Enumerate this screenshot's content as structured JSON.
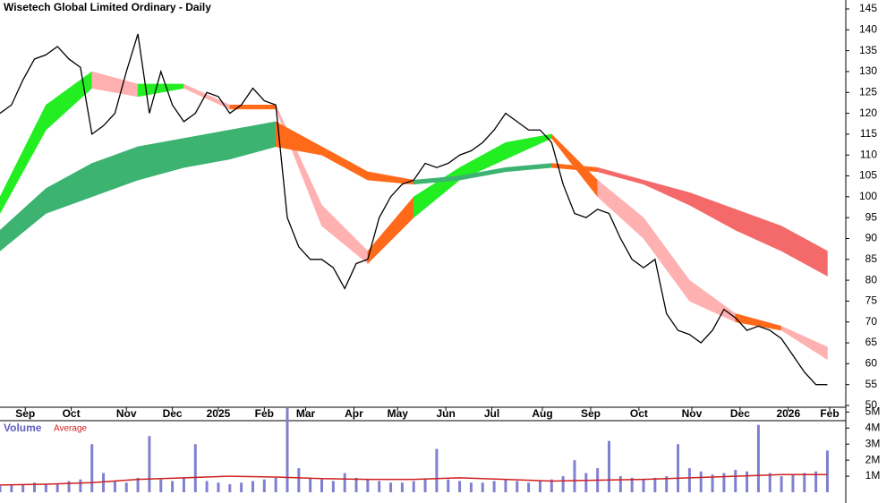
{
  "chart_data": [
    {
      "type": "line",
      "title": "Wisetech Global Limited Ordinary - Daily",
      "xlim": [
        0,
        368
      ],
      "xticks": [
        {
          "value": 11,
          "label": "Sep"
        },
        {
          "value": 31,
          "label": "Oct"
        },
        {
          "value": 55,
          "label": "Nov"
        },
        {
          "value": 75,
          "label": "Dec"
        },
        {
          "value": 95,
          "label": "2025"
        },
        {
          "value": 115,
          "label": "Feb"
        },
        {
          "value": 133,
          "label": "Mar"
        },
        {
          "value": 154,
          "label": "Apr"
        },
        {
          "value": 173,
          "label": "May"
        },
        {
          "value": 194,
          "label": "Jun"
        },
        {
          "value": 214,
          "label": "Jul"
        },
        {
          "value": 236,
          "label": "Aug"
        },
        {
          "value": 257,
          "label": "Sep"
        },
        {
          "value": 278,
          "label": "Oct"
        },
        {
          "value": 301,
          "label": "Nov"
        },
        {
          "value": 322,
          "label": "Dec"
        },
        {
          "value": 343,
          "label": "2026"
        },
        {
          "value": 361,
          "label": "Feb"
        }
      ],
      "ylim": [
        50,
        145
      ],
      "yticks": [
        50,
        55,
        60,
        65,
        70,
        75,
        80,
        85,
        90,
        95,
        100,
        105,
        110,
        115,
        120,
        125,
        130,
        135,
        140,
        145
      ],
      "grid": false,
      "x": [
        0,
        5,
        10,
        15,
        20,
        25,
        30,
        35,
        40,
        45,
        50,
        55,
        60,
        65,
        70,
        75,
        80,
        85,
        90,
        95,
        100,
        105,
        110,
        115,
        120,
        125,
        130,
        135,
        140,
        145,
        150,
        155,
        160,
        165,
        170,
        175,
        180,
        185,
        190,
        195,
        200,
        205,
        210,
        215,
        220,
        225,
        230,
        235,
        240,
        245,
        250,
        255,
        260,
        265,
        270,
        275,
        280,
        285,
        290,
        295,
        300,
        305,
        310,
        315,
        320,
        325,
        330,
        335,
        340,
        345,
        350,
        355,
        360
      ],
      "series": [
        {
          "color": "#000000",
          "values": [
            120,
            122,
            128,
            133,
            134,
            136,
            133,
            131,
            115,
            117,
            120,
            130,
            139,
            120,
            130,
            122,
            118,
            120,
            125,
            124,
            120,
            122,
            126,
            123,
            122,
            95,
            88,
            85,
            85,
            83,
            78,
            84,
            85,
            95,
            100,
            103,
            104,
            108,
            107,
            108,
            110,
            111,
            113,
            116,
            120,
            118,
            116,
            116,
            113,
            103,
            96,
            95,
            97,
            96,
            90,
            85,
            83,
            85,
            72,
            68,
            67,
            65,
            68,
            73,
            71,
            68,
            69,
            68,
            66,
            62,
            58,
            55,
            55
          ]
        }
      ],
      "band_x": [
        0,
        20,
        40,
        60,
        80,
        100,
        120,
        140,
        160,
        180,
        200,
        220,
        240,
        260,
        280,
        300,
        320,
        340,
        360
      ],
      "bands": [
        {
          "upper": [
            100,
            122,
            130,
            127,
            127,
            122,
            122,
            98,
            87,
            100,
            107,
            113,
            115,
            104,
            95,
            80,
            72,
            69,
            64
          ],
          "lower": [
            96,
            116,
            126,
            124,
            126,
            121,
            121,
            93,
            84,
            95,
            104,
            109,
            114,
            100,
            90,
            75,
            70,
            68,
            61
          ],
          "segment_colors": [
            "#22ee22",
            "#22ee22",
            "#ffb0b0",
            "#22ee22",
            "#ffb0b0",
            "#ff6a1a",
            "#ffb0b0",
            "#ffb0b0",
            "#ff6a1a",
            "#22ee22",
            "#22ee22",
            "#22ee22",
            "#ff6a1a",
            "#ffb0b0",
            "#ffb0b0",
            "#ffb0b0",
            "#ff6a1a",
            "#ffb0b0"
          ]
        },
        {
          "upper": [
            92,
            102,
            108,
            112,
            114,
            116,
            118,
            112,
            106,
            104,
            105,
            107,
            108,
            107,
            104,
            101,
            97,
            93,
            87
          ],
          "lower": [
            87,
            96,
            100,
            104,
            107,
            109,
            112,
            110,
            104,
            103,
            104,
            106,
            107,
            106,
            103,
            98,
            92,
            87,
            81
          ],
          "segment_colors": [
            "#3cb371",
            "#3cb371",
            "#3cb371",
            "#3cb371",
            "#3cb371",
            "#3cb371",
            "#ff6a1a",
            "#ff6a1a",
            "#ff6a1a",
            "#3cb371",
            "#3cb371",
            "#3cb371",
            "#ff6a1a",
            "#f46a6a",
            "#f46a6a",
            "#f46a6a",
            "#f46a6a",
            "#f46a6a"
          ]
        }
      ]
    },
    {
      "type": "bar",
      "title": "Volume",
      "ylim": [
        0,
        5300000
      ],
      "yticks": [
        {
          "value": 1000000,
          "label": "1M"
        },
        {
          "value": 2000000,
          "label": "2M"
        },
        {
          "value": 3000000,
          "label": "3M"
        },
        {
          "value": 4000000,
          "label": "4M"
        },
        {
          "value": 5000000,
          "label": "5M"
        }
      ],
      "color": "#8080d0",
      "values": [
        400000,
        500000,
        450000,
        600000,
        500000,
        550000,
        700000,
        800000,
        3000000,
        1200000,
        700000,
        600000,
        900000,
        3500000,
        800000,
        700000,
        900000,
        3000000,
        700000,
        600000,
        500000,
        600000,
        700000,
        800000,
        900000,
        5300000,
        1500000,
        900000,
        800000,
        700000,
        1200000,
        900000,
        800000,
        700000,
        600000,
        600000,
        700000,
        800000,
        2700000,
        800000,
        700000,
        600000,
        600000,
        700000,
        800000,
        700000,
        600000,
        700000,
        800000,
        1000000,
        2000000,
        1200000,
        1500000,
        3200000,
        1000000,
        900000,
        800000,
        900000,
        1000000,
        3000000,
        1500000,
        1300000,
        1100000,
        1200000,
        1400000,
        1300000,
        4200000,
        1200000,
        1000000,
        1100000,
        1200000,
        1300000,
        2600000
      ],
      "avg_name": "Average",
      "avg_color": "#d02020",
      "avg": [
        450000,
        500000,
        600000,
        800000,
        900000,
        1000000,
        950000,
        850000,
        800000,
        800000,
        900000,
        800000,
        700000,
        750000,
        800000,
        900000,
        1000000,
        1100000,
        1100000
      ]
    }
  ]
}
